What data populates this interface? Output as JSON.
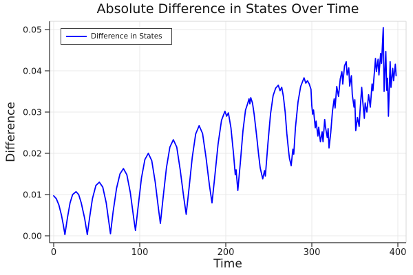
{
  "colors": {
    "line": "#0000ff",
    "grid": "#e8e8e8",
    "frame_light": "#d7d7d7",
    "spine": "#2b2b2b",
    "text": "#1a1a1a"
  },
  "chart_data": {
    "type": "line",
    "title": "Absolute Difference in States Over Time",
    "xlabel": "Time",
    "ylabel": "Difference",
    "legend_position": "top-left",
    "grid": true,
    "xlim": [
      -4.8,
      409.6
    ],
    "ylim": [
      -0.001667,
      0.052
    ],
    "xticks": {
      "values": [
        0,
        100,
        200,
        300,
        400
      ],
      "labels": [
        "0",
        "100",
        "200",
        "300",
        "400"
      ]
    },
    "yticks": {
      "values": [
        0.0,
        0.01,
        0.02,
        0.03,
        0.04,
        0.05
      ],
      "labels": [
        "0.00",
        "0.01",
        "0.02",
        "0.03",
        "0.04",
        "0.05"
      ]
    },
    "series": [
      {
        "name": "Difference in States",
        "color": "#0000ff",
        "points": [
          [
            0,
            0.0097
          ],
          [
            3,
            0.009
          ],
          [
            6,
            0.0075
          ],
          [
            9,
            0.005
          ],
          [
            11,
            0.0028
          ],
          [
            13,
            0.0003
          ],
          [
            16,
            0.0044
          ],
          [
            19,
            0.008
          ],
          [
            22,
            0.01
          ],
          [
            26,
            0.0107
          ],
          [
            29,
            0.01
          ],
          [
            32,
            0.008
          ],
          [
            36,
            0.0042
          ],
          [
            39,
            0.0003
          ],
          [
            42,
            0.0048
          ],
          [
            45,
            0.009
          ],
          [
            49,
            0.0122
          ],
          [
            53,
            0.013
          ],
          [
            57,
            0.0118
          ],
          [
            61,
            0.008
          ],
          [
            64,
            0.0035
          ],
          [
            66,
            0.0005
          ],
          [
            69,
            0.0058
          ],
          [
            73,
            0.0115
          ],
          [
            77,
            0.015
          ],
          [
            81,
            0.0163
          ],
          [
            85,
            0.0148
          ],
          [
            89,
            0.0105
          ],
          [
            93,
            0.0042
          ],
          [
            95,
            0.0013
          ],
          [
            98,
            0.0068
          ],
          [
            102,
            0.014
          ],
          [
            106,
            0.0185
          ],
          [
            110,
            0.02
          ],
          [
            114,
            0.0182
          ],
          [
            118,
            0.013
          ],
          [
            122,
            0.0062
          ],
          [
            124,
            0.003
          ],
          [
            127,
            0.009
          ],
          [
            131,
            0.0165
          ],
          [
            135,
            0.0215
          ],
          [
            139,
            0.0233
          ],
          [
            143,
            0.0215
          ],
          [
            147,
            0.016
          ],
          [
            151,
            0.0095
          ],
          [
            154,
            0.0052
          ],
          [
            157,
            0.011
          ],
          [
            161,
            0.019
          ],
          [
            165,
            0.0247
          ],
          [
            169,
            0.0267
          ],
          [
            173,
            0.0248
          ],
          [
            177,
            0.019
          ],
          [
            181,
            0.0122
          ],
          [
            184,
            0.008
          ],
          [
            187,
            0.014
          ],
          [
            191,
            0.0222
          ],
          [
            195,
            0.028
          ],
          [
            199,
            0.0302
          ],
          [
            201,
            0.029
          ],
          [
            203,
            0.0298
          ],
          [
            206,
            0.0262
          ],
          [
            209,
            0.02
          ],
          [
            211,
            0.0148
          ],
          [
            212,
            0.016
          ],
          [
            214,
            0.011
          ],
          [
            217,
            0.018
          ],
          [
            220,
            0.0255
          ],
          [
            223,
            0.0305
          ],
          [
            225,
            0.0318
          ],
          [
            227,
            0.0332
          ],
          [
            228,
            0.032
          ],
          [
            229,
            0.0335
          ],
          [
            231,
            0.0322
          ],
          [
            233,
            0.0295
          ],
          [
            236,
            0.024
          ],
          [
            238,
            0.02
          ],
          [
            240,
            0.0165
          ],
          [
            243,
            0.0138
          ],
          [
            245,
            0.0158
          ],
          [
            246,
            0.0145
          ],
          [
            249,
            0.0225
          ],
          [
            252,
            0.0295
          ],
          [
            255,
            0.034
          ],
          [
            258,
            0.0358
          ],
          [
            261,
            0.0365
          ],
          [
            263,
            0.0352
          ],
          [
            265,
            0.036
          ],
          [
            267,
            0.0338
          ],
          [
            269,
            0.03
          ],
          [
            271,
            0.0248
          ],
          [
            273,
            0.0205
          ],
          [
            274,
            0.0188
          ],
          [
            276,
            0.017
          ],
          [
            278,
            0.021
          ],
          [
            279,
            0.0198
          ],
          [
            281,
            0.0262
          ],
          [
            284,
            0.0325
          ],
          [
            287,
            0.0362
          ],
          [
            291,
            0.0383
          ],
          [
            293,
            0.037
          ],
          [
            295,
            0.0376
          ],
          [
            297,
            0.0368
          ],
          [
            299,
            0.0355
          ],
          [
            300,
            0.0315
          ],
          [
            301,
            0.0295
          ],
          [
            302,
            0.0305
          ],
          [
            304,
            0.0262
          ],
          [
            305,
            0.0278
          ],
          [
            307,
            0.0242
          ],
          [
            308,
            0.0263
          ],
          [
            310,
            0.0228
          ],
          [
            312,
            0.0252
          ],
          [
            313,
            0.0228
          ],
          [
            315,
            0.0282
          ],
          [
            316,
            0.0262
          ],
          [
            318,
            0.0238
          ],
          [
            319,
            0.026
          ],
          [
            320,
            0.0213
          ],
          [
            321,
            0.0232
          ],
          [
            322,
            0.025
          ],
          [
            324,
            0.0302
          ],
          [
            326,
            0.0332
          ],
          [
            327,
            0.031
          ],
          [
            329,
            0.0362
          ],
          [
            331,
            0.0338
          ],
          [
            333,
            0.038
          ],
          [
            335,
            0.0398
          ],
          [
            336,
            0.0368
          ],
          [
            338,
            0.0412
          ],
          [
            340,
            0.0422
          ],
          [
            341,
            0.039
          ],
          [
            343,
            0.0407
          ],
          [
            344,
            0.0363
          ],
          [
            346,
            0.0388
          ],
          [
            347,
            0.0342
          ],
          [
            349,
            0.0312
          ],
          [
            350,
            0.033
          ],
          [
            351,
            0.0255
          ],
          [
            353,
            0.0287
          ],
          [
            355,
            0.0265
          ],
          [
            356,
            0.0302
          ],
          [
            358,
            0.036
          ],
          [
            359,
            0.033
          ],
          [
            361,
            0.0285
          ],
          [
            362,
            0.0322
          ],
          [
            364,
            0.03
          ],
          [
            366,
            0.0342
          ],
          [
            368,
            0.0312
          ],
          [
            370,
            0.0368
          ],
          [
            371,
            0.0352
          ],
          [
            373,
            0.0405
          ],
          [
            374,
            0.043
          ],
          [
            375,
            0.0398
          ],
          [
            377,
            0.0428
          ],
          [
            378,
            0.039
          ],
          [
            380,
            0.0442
          ],
          [
            381,
            0.0418
          ],
          [
            383,
            0.0505
          ],
          [
            384,
            0.035
          ],
          [
            386,
            0.0447
          ],
          [
            387,
            0.0353
          ],
          [
            388,
            0.0382
          ],
          [
            389,
            0.029
          ],
          [
            391,
            0.0422
          ],
          [
            392,
            0.036
          ],
          [
            394,
            0.0406
          ],
          [
            395,
            0.0376
          ],
          [
            397,
            0.0416
          ],
          [
            398,
            0.0388
          ]
        ]
      }
    ]
  }
}
